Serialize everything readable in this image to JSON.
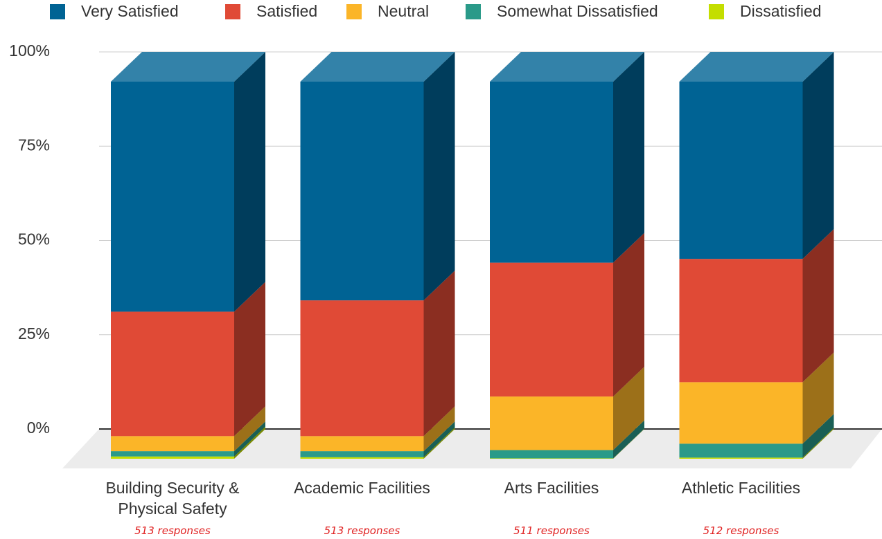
{
  "chart_data": {
    "type": "bar3d_stacked",
    "categories": [
      "Building Security & Physical Safety",
      "Academic Facilities",
      "Arts Facilities",
      "Athletic Facilities"
    ],
    "series": [
      {
        "name": "Very Satisfied",
        "color": "#006394",
        "values": [
          61,
          58,
          48,
          47
        ]
      },
      {
        "name": "Satisfied",
        "color": "#e04a36",
        "values": [
          33,
          36,
          35.5,
          32.7
        ]
      },
      {
        "name": "Neutral",
        "color": "#fbb528",
        "values": [
          4,
          4,
          14.2,
          16.3
        ]
      },
      {
        "name": "Somewhat Dissatisfied",
        "color": "#2a9a89",
        "values": [
          1.4,
          1.6,
          2.2,
          3.7
        ]
      },
      {
        "name": "Dissatisfied",
        "color": "#c4de00",
        "values": [
          0.6,
          0.4,
          0.1,
          0.3
        ]
      }
    ],
    "notes": [
      "513 responses",
      "513 responses",
      "511 responses",
      "512 responses"
    ],
    "ylim": [
      0,
      100
    ],
    "yticks": [
      {
        "value": 0,
        "label": "0%"
      },
      {
        "value": 25,
        "label": "25%"
      },
      {
        "value": 50,
        "label": "50%"
      },
      {
        "value": 75,
        "label": "75%"
      },
      {
        "value": 100,
        "label": "100%"
      }
    ],
    "grid": true,
    "legend": "top"
  }
}
